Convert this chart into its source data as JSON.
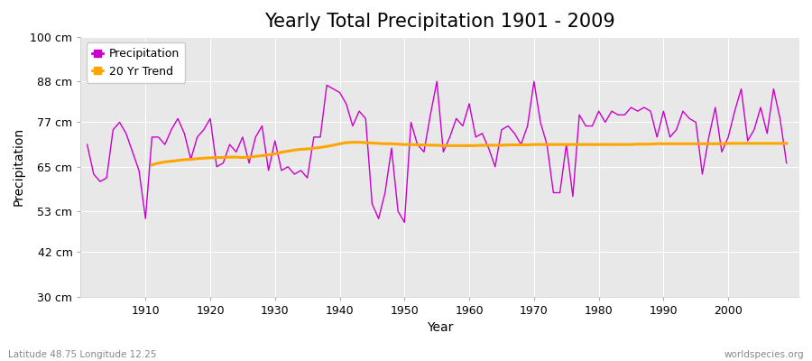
{
  "title": "Yearly Total Precipitation 1901 - 2009",
  "xlabel": "Year",
  "ylabel": "Precipitation",
  "lat_lon_label": "Latitude 48.75 Longitude 12.25",
  "source_label": "worldspecies.org",
  "years": [
    1901,
    1902,
    1903,
    1904,
    1905,
    1906,
    1907,
    1908,
    1909,
    1910,
    1911,
    1912,
    1913,
    1914,
    1915,
    1916,
    1917,
    1918,
    1919,
    1920,
    1921,
    1922,
    1923,
    1924,
    1925,
    1926,
    1927,
    1928,
    1929,
    1930,
    1931,
    1932,
    1933,
    1934,
    1935,
    1936,
    1937,
    1938,
    1939,
    1940,
    1941,
    1942,
    1943,
    1944,
    1945,
    1946,
    1947,
    1948,
    1949,
    1950,
    1951,
    1952,
    1953,
    1954,
    1955,
    1956,
    1957,
    1958,
    1959,
    1960,
    1961,
    1962,
    1963,
    1964,
    1965,
    1966,
    1967,
    1968,
    1969,
    1970,
    1971,
    1972,
    1973,
    1974,
    1975,
    1976,
    1977,
    1978,
    1979,
    1980,
    1981,
    1982,
    1983,
    1984,
    1985,
    1986,
    1987,
    1988,
    1989,
    1990,
    1991,
    1992,
    1993,
    1994,
    1995,
    1996,
    1997,
    1998,
    1999,
    2000,
    2001,
    2002,
    2003,
    2004,
    2005,
    2006,
    2007,
    2008,
    2009
  ],
  "precipitation": [
    71,
    63,
    61,
    62,
    75,
    77,
    74,
    69,
    64,
    51,
    73,
    73,
    71,
    75,
    78,
    74,
    67,
    73,
    75,
    78,
    65,
    66,
    71,
    69,
    73,
    66,
    73,
    76,
    64,
    72,
    64,
    65,
    63,
    64,
    62,
    73,
    73,
    87,
    86,
    85,
    82,
    76,
    80,
    78,
    55,
    51,
    58,
    70,
    53,
    50,
    77,
    71,
    69,
    79,
    88,
    69,
    73,
    78,
    76,
    82,
    73,
    74,
    70,
    65,
    75,
    76,
    74,
    71,
    76,
    88,
    77,
    71,
    58,
    58,
    71,
    57,
    79,
    76,
    76,
    80,
    77,
    80,
    79,
    79,
    81,
    80,
    81,
    80,
    73,
    80,
    73,
    75,
    80,
    78,
    77,
    63,
    73,
    81,
    69,
    73,
    80,
    86,
    72,
    75,
    81,
    74,
    86,
    78,
    66
  ],
  "trend": [
    null,
    null,
    null,
    null,
    null,
    null,
    null,
    null,
    null,
    null,
    65.5,
    66.0,
    66.3,
    66.5,
    66.7,
    66.9,
    67.0,
    67.2,
    67.3,
    67.4,
    67.5,
    67.5,
    67.6,
    67.6,
    67.5,
    67.6,
    67.8,
    68.0,
    68.2,
    68.5,
    68.9,
    69.2,
    69.5,
    69.7,
    69.8,
    70.0,
    70.2,
    70.5,
    70.8,
    71.2,
    71.5,
    71.6,
    71.6,
    71.5,
    71.4,
    71.3,
    71.2,
    71.2,
    71.1,
    71.0,
    71.0,
    70.9,
    70.9,
    70.8,
    70.8,
    70.7,
    70.7,
    70.7,
    70.7,
    70.7,
    70.7,
    70.8,
    70.8,
    70.8,
    70.8,
    70.9,
    70.9,
    70.9,
    70.9,
    71.0,
    71.0,
    71.0,
    71.0,
    71.0,
    71.0,
    71.0,
    71.0,
    71.0,
    71.0,
    71.0,
    71.0,
    71.0,
    71.0,
    71.0,
    71.0,
    71.1,
    71.1,
    71.1,
    71.2,
    71.2,
    71.2,
    71.2,
    71.2,
    71.2,
    71.2,
    71.2,
    71.2,
    71.2,
    71.2,
    71.3,
    71.3,
    71.3,
    71.3,
    71.3,
    71.3,
    71.3,
    71.3,
    71.3,
    71.3
  ],
  "ylim": [
    30,
    100
  ],
  "yticks": [
    30,
    42,
    53,
    65,
    77,
    88,
    100
  ],
  "ytick_labels": [
    "30 cm",
    "42 cm",
    "53 cm",
    "65 cm",
    "77 cm",
    "88 cm",
    "100 cm"
  ],
  "xlim": [
    1901,
    2009
  ],
  "xticks": [
    1910,
    1920,
    1930,
    1940,
    1950,
    1960,
    1970,
    1980,
    1990,
    2000
  ],
  "fig_bg_color": "#ffffff",
  "plot_bg_color": "#e8e8e8",
  "precip_color": "#cc00cc",
  "trend_color": "#ffa500",
  "grid_color": "#ffffff",
  "title_fontsize": 15,
  "label_fontsize": 10,
  "tick_fontsize": 9,
  "legend_fontsize": 9
}
